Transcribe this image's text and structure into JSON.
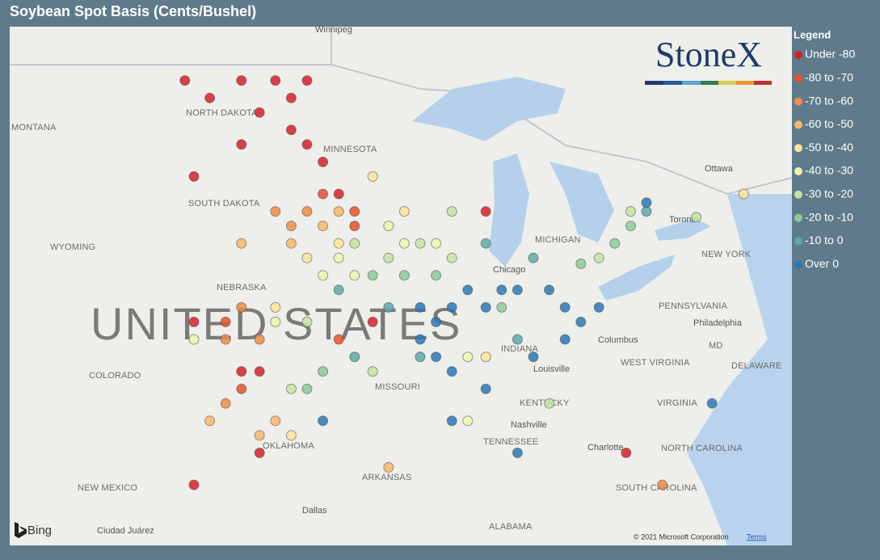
{
  "title": "Soybean Spot Basis (Cents/Bushel)",
  "legend": {
    "title": "Legend",
    "items": [
      {
        "label": "Under -80",
        "color": "#d62027"
      },
      {
        "label": "-80 to -70",
        "color": "#e8502e"
      },
      {
        "label": "-70 to -60",
        "color": "#f08c45"
      },
      {
        "label": "-60 to -50",
        "color": "#f7b96a"
      },
      {
        "label": "-50 to -40",
        "color": "#fbe39a"
      },
      {
        "label": "-40 to -30",
        "color": "#eef4ae"
      },
      {
        "label": "-30 to -20",
        "color": "#c3e4a0"
      },
      {
        "label": "-20 to -10",
        "color": "#8ccb96"
      },
      {
        "label": "-10 to 0",
        "color": "#5ea9a8"
      },
      {
        "label": "Over 0",
        "color": "#2a78b5"
      }
    ]
  },
  "logo": "StoneX",
  "map": {
    "labels": [
      "Winnipeg",
      "MONTANA",
      "NORTH DAKOTA",
      "MINNESOTA",
      "SOUTH DAKOTA",
      "WYOMING",
      "NEBRASKA",
      "UNITED STATES",
      "COLORADO",
      "MISSOURI",
      "OKLAHOMA",
      "ARKANSAS",
      "NEW MEXICO",
      "Dallas",
      "Ciudad Juárez",
      "ALABAMA",
      "TENNESSEE",
      "Nashville",
      "KENTUCKY",
      "Louisville",
      "INDIANA",
      "Columbus",
      "WEST VIRGINIA",
      "VIRGINIA",
      "NORTH CAROLINA",
      "SOUTH CAROLINA",
      "Charlotte",
      "PENNSYLVANIA",
      "Philadelphia",
      "NEW YORK",
      "Ottawa",
      "Toronto",
      "MICHIGAN",
      "Chicago",
      "DELAWARE",
      "MD"
    ],
    "points": [
      [
        -102.4,
        48.9,
        0
      ],
      [
        -99.9,
        48.9,
        0
      ],
      [
        -98.4,
        48.9,
        0
      ],
      [
        -97.0,
        48.9,
        0
      ],
      [
        -101.3,
        48.3,
        0
      ],
      [
        -99.1,
        47.8,
        0
      ],
      [
        -97.7,
        47.2,
        0
      ],
      [
        -97.0,
        46.7,
        0
      ],
      [
        -96.3,
        46.1,
        0
      ],
      [
        -95.6,
        45.0,
        0
      ],
      [
        -97.7,
        48.3,
        0
      ],
      [
        -99.9,
        46.7,
        0
      ],
      [
        -102.0,
        45.6,
        0
      ],
      [
        -94.1,
        40.6,
        0
      ],
      [
        -99.9,
        38.9,
        0
      ],
      [
        -99.1,
        38.9,
        0
      ],
      [
        -102.0,
        40.6,
        0
      ],
      [
        -89.1,
        44.4,
        0
      ],
      [
        -82.9,
        36.1,
        0
      ],
      [
        -102.0,
        35.0,
        0
      ],
      [
        -99.1,
        36.1,
        0
      ],
      [
        -96.3,
        45.0,
        1
      ],
      [
        -94.9,
        44.4,
        1
      ],
      [
        -100.6,
        40.6,
        1
      ],
      [
        -99.9,
        38.3,
        1
      ],
      [
        -95.6,
        40.0,
        1
      ],
      [
        -94.9,
        43.9,
        1
      ],
      [
        -98.4,
        44.4,
        2
      ],
      [
        -97.7,
        43.9,
        2
      ],
      [
        -99.9,
        41.1,
        2
      ],
      [
        -100.6,
        40.0,
        2
      ],
      [
        -99.1,
        40.0,
        2
      ],
      [
        -100.6,
        37.8,
        2
      ],
      [
        -97.0,
        44.4,
        2
      ],
      [
        -81.3,
        35.0,
        2
      ],
      [
        -99.9,
        43.3,
        3
      ],
      [
        -97.7,
        43.3,
        3
      ],
      [
        -96.3,
        43.9,
        3
      ],
      [
        -98.4,
        37.2,
        3
      ],
      [
        -101.3,
        37.2,
        3
      ],
      [
        -99.1,
        36.7,
        3
      ],
      [
        -95.6,
        44.4,
        3
      ],
      [
        -93.4,
        35.6,
        3
      ],
      [
        -94.1,
        45.6,
        4
      ],
      [
        -97.0,
        42.8,
        4
      ],
      [
        -95.6,
        43.3,
        4
      ],
      [
        -92.7,
        44.4,
        4
      ],
      [
        -98.4,
        41.1,
        4
      ],
      [
        -97.7,
        36.7,
        4
      ],
      [
        -77.7,
        45.0,
        4
      ],
      [
        -89.1,
        39.4,
        4
      ],
      [
        -95.6,
        42.8,
        5
      ],
      [
        -94.9,
        42.2,
        5
      ],
      [
        -93.4,
        43.9,
        5
      ],
      [
        -92.7,
        43.3,
        5
      ],
      [
        -98.4,
        40.6,
        5
      ],
      [
        -96.3,
        42.2,
        5
      ],
      [
        -102.0,
        40.0,
        5
      ],
      [
        -91.3,
        43.3,
        5
      ],
      [
        -89.9,
        39.4,
        5
      ],
      [
        -89.9,
        37.2,
        5
      ],
      [
        -94.9,
        43.3,
        6
      ],
      [
        -93.4,
        42.8,
        6
      ],
      [
        -92.0,
        43.3,
        6
      ],
      [
        -90.6,
        44.4,
        6
      ],
      [
        -97.0,
        40.6,
        6
      ],
      [
        -97.7,
        38.3,
        6
      ],
      [
        -90.6,
        42.8,
        6
      ],
      [
        -82.7,
        44.4,
        6
      ],
      [
        -84.1,
        42.8,
        6
      ],
      [
        -79.8,
        44.2,
        6
      ],
      [
        -86.3,
        37.8,
        6
      ],
      [
        -94.1,
        38.9,
        6
      ],
      [
        -94.1,
        42.2,
        7
      ],
      [
        -92.7,
        42.2,
        7
      ],
      [
        -97.0,
        38.3,
        7
      ],
      [
        -96.3,
        38.9,
        7
      ],
      [
        -83.4,
        43.3,
        7
      ],
      [
        -82.7,
        43.9,
        7
      ],
      [
        -84.9,
        42.6,
        7
      ],
      [
        -91.3,
        42.2,
        7
      ],
      [
        -88.4,
        41.1,
        7
      ],
      [
        -95.6,
        41.7,
        8
      ],
      [
        -93.4,
        41.1,
        8
      ],
      [
        -89.1,
        43.3,
        8
      ],
      [
        -87.0,
        42.8,
        8
      ],
      [
        -82.0,
        44.4,
        8
      ],
      [
        -87.7,
        40.0,
        8
      ],
      [
        -94.9,
        39.4,
        8
      ],
      [
        -92.0,
        39.4,
        8
      ],
      [
        -92.0,
        41.1,
        9
      ],
      [
        -91.3,
        40.6,
        9
      ],
      [
        -90.6,
        41.1,
        9
      ],
      [
        -89.9,
        41.7,
        9
      ],
      [
        -89.1,
        41.1,
        9
      ],
      [
        -91.3,
        39.4,
        9
      ],
      [
        -90.6,
        38.9,
        9
      ],
      [
        -92.0,
        40.0,
        9
      ],
      [
        -86.3,
        41.7,
        9
      ],
      [
        -85.6,
        41.1,
        9
      ],
      [
        -84.9,
        40.6,
        9
      ],
      [
        -87.7,
        41.7,
        9
      ],
      [
        -87.0,
        39.4,
        9
      ],
      [
        -85.6,
        40.0,
        9
      ],
      [
        -89.1,
        38.3,
        9
      ],
      [
        -90.6,
        37.2,
        9
      ],
      [
        -87.7,
        36.1,
        9
      ],
      [
        -79.1,
        37.8,
        9
      ],
      [
        -88.4,
        41.7,
        9
      ],
      [
        -96.3,
        37.2,
        9
      ],
      [
        -82.0,
        44.7,
        9
      ],
      [
        -84.1,
        41.1,
        9
      ]
    ]
  },
  "attribution": {
    "provider": "Bing",
    "copyright": "© 2021 Microsoft Corporation",
    "terms": "Terms"
  }
}
